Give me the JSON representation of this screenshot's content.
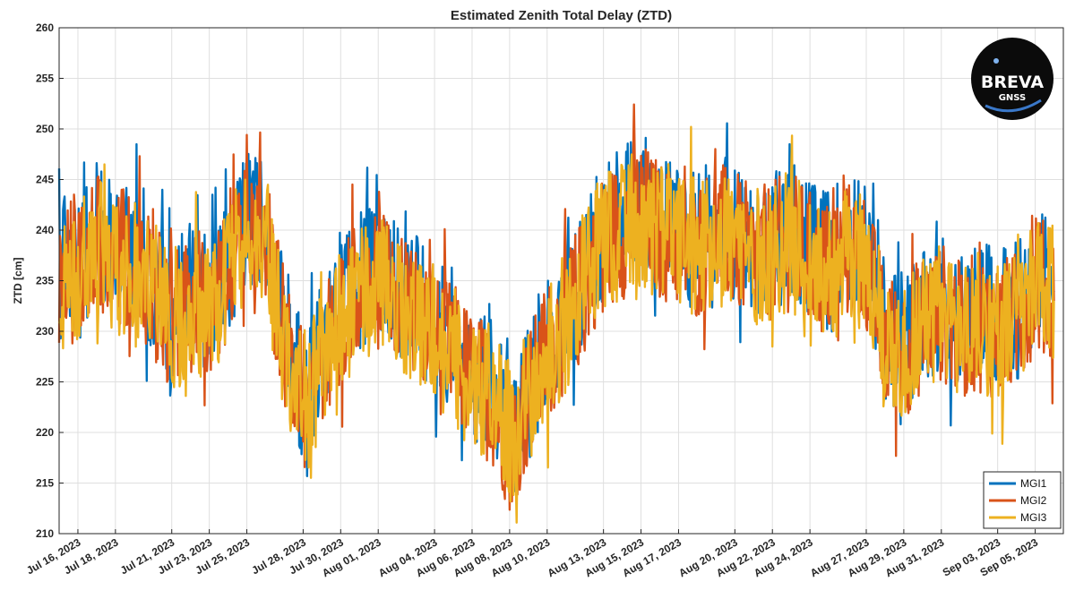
{
  "chart_data": {
    "type": "line",
    "title": "Estimated Zenith Total Delay (ZTD)",
    "xlabel": "",
    "ylabel": "ZTD [cm]",
    "ylim": [
      210,
      260
    ],
    "yticks": [
      210,
      215,
      220,
      225,
      230,
      235,
      240,
      245,
      250,
      255,
      260
    ],
    "xlim": [
      "2023-07-15",
      "2023-09-06T12:00"
    ],
    "xticks": [
      "Jul 16, 2023",
      "Jul 18, 2023",
      "Jul 21, 2023",
      "Jul 23, 2023",
      "Jul 25, 2023",
      "Jul 28, 2023",
      "Jul 30, 2023",
      "Aug 01, 2023",
      "Aug 04, 2023",
      "Aug 06, 2023",
      "Aug 08, 2023",
      "Aug 10, 2023",
      "Aug 13, 2023",
      "Aug 15, 2023",
      "Aug 17, 2023",
      "Aug 20, 2023",
      "Aug 22, 2023",
      "Aug 24, 2023",
      "Aug 27, 2023",
      "Aug 29, 2023",
      "Aug 31, 2023",
      "Sep 03, 2023",
      "Sep 05, 2023"
    ],
    "xtick_dates": [
      "2023-07-16",
      "2023-07-18",
      "2023-07-21",
      "2023-07-23",
      "2023-07-25",
      "2023-07-28",
      "2023-07-30",
      "2023-08-01",
      "2023-08-04",
      "2023-08-06",
      "2023-08-08",
      "2023-08-10",
      "2023-08-13",
      "2023-08-15",
      "2023-08-17",
      "2023-08-20",
      "2023-08-22",
      "2023-08-24",
      "2023-08-27",
      "2023-08-29",
      "2023-08-31",
      "2023-09-03",
      "2023-09-05"
    ],
    "grid": true,
    "legend_position": "bottom-right",
    "x": [
      "2023-07-15",
      "2023-07-16",
      "2023-07-17",
      "2023-07-18",
      "2023-07-19",
      "2023-07-20",
      "2023-07-21",
      "2023-07-22",
      "2023-07-23",
      "2023-07-24",
      "2023-07-25",
      "2023-07-26",
      "2023-07-27",
      "2023-07-28",
      "2023-07-29",
      "2023-07-30",
      "2023-07-31",
      "2023-08-01",
      "2023-08-02",
      "2023-08-03",
      "2023-08-04",
      "2023-08-05",
      "2023-08-06",
      "2023-08-07",
      "2023-08-08",
      "2023-08-09",
      "2023-08-10",
      "2023-08-11",
      "2023-08-12",
      "2023-08-13",
      "2023-08-14",
      "2023-08-15",
      "2023-08-16",
      "2023-08-17",
      "2023-08-18",
      "2023-08-19",
      "2023-08-20",
      "2023-08-21",
      "2023-08-22",
      "2023-08-23",
      "2023-08-24",
      "2023-08-25",
      "2023-08-26",
      "2023-08-27",
      "2023-08-28",
      "2023-08-29",
      "2023-08-30",
      "2023-08-31",
      "2023-09-01",
      "2023-09-02",
      "2023-09-03",
      "2023-09-04",
      "2023-09-05",
      "2023-09-06"
    ],
    "series": [
      {
        "name": "MGI1",
        "color": "#0072BD",
        "values": [
          236,
          238,
          240,
          239,
          237,
          235,
          232,
          234,
          233,
          236,
          242,
          240,
          230,
          224,
          228,
          233,
          235,
          236,
          234,
          233,
          230,
          229,
          226,
          225,
          220,
          224,
          229,
          232,
          236,
          240,
          241,
          243,
          241,
          240,
          239,
          241,
          240,
          238,
          239,
          240,
          238,
          237,
          239,
          238,
          230,
          229,
          232,
          233,
          231,
          232,
          231,
          232,
          236,
          234
        ]
      },
      {
        "name": "MGI2",
        "color": "#D95319",
        "values": [
          235,
          237,
          239,
          238,
          236,
          234,
          231,
          233,
          232,
          235,
          241,
          239,
          229,
          223,
          227,
          232,
          234,
          235,
          233,
          232,
          229,
          228,
          225,
          224,
          219,
          223,
          228,
          231,
          235,
          239,
          240,
          242,
          240,
          239,
          238,
          240,
          239,
          237,
          238,
          239,
          237,
          236,
          238,
          237,
          229,
          228,
          231,
          232,
          230,
          231,
          230,
          231,
          235,
          233
        ]
      },
      {
        "name": "MGI3",
        "color": "#EDB120",
        "values": [
          235,
          236,
          238,
          237,
          235,
          234,
          231,
          232,
          232,
          235,
          240,
          238,
          229,
          222,
          227,
          231,
          233,
          235,
          233,
          232,
          229,
          228,
          225,
          224,
          220,
          223,
          228,
          231,
          235,
          239,
          240,
          241,
          240,
          239,
          238,
          240,
          239,
          237,
          238,
          239,
          237,
          236,
          237,
          237,
          229,
          228,
          231,
          232,
          230,
          231,
          230,
          231,
          234,
          233
        ]
      }
    ]
  },
  "logo": {
    "line1": "BREVA",
    "line2": "GNSS",
    "background": "#0b0b0b",
    "accent": "#3a78c9"
  }
}
